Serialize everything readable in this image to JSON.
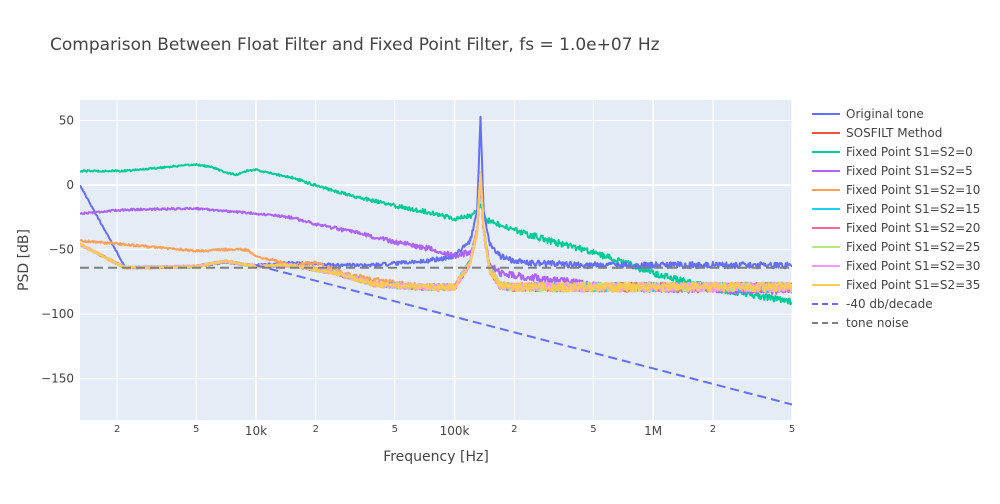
{
  "chart_data": {
    "type": "line",
    "title": "Comparison Between Float Filter and Fixed Point Filter, fs = 1.0e+07 Hz",
    "xlabel": "Frequency [Hz]",
    "ylabel": "PSD [dB]",
    "x_scale": "log",
    "xlim": [
      1300,
      5000000
    ],
    "ylim": [
      -182,
      66
    ],
    "grid": true,
    "legend_position": "right",
    "x_ticks": [
      {
        "value": 2000,
        "label": "2",
        "minor": true
      },
      {
        "value": 5000,
        "label": "5",
        "minor": true
      },
      {
        "value": 10000,
        "label": "10k",
        "minor": false
      },
      {
        "value": 20000,
        "label": "2",
        "minor": true
      },
      {
        "value": 50000,
        "label": "5",
        "minor": true
      },
      {
        "value": 100000,
        "label": "100k",
        "minor": false
      },
      {
        "value": 200000,
        "label": "2",
        "minor": true
      },
      {
        "value": 500000,
        "label": "5",
        "minor": true
      },
      {
        "value": 1000000,
        "label": "1M",
        "minor": false
      },
      {
        "value": 2000000,
        "label": "2",
        "minor": true
      },
      {
        "value": 5000000,
        "label": "5",
        "minor": true
      }
    ],
    "y_ticks": [
      {
        "value": 50,
        "label": "50"
      },
      {
        "value": 0,
        "label": "0"
      },
      {
        "value": -50,
        "label": "−50"
      },
      {
        "value": -100,
        "label": "−100"
      },
      {
        "value": -150,
        "label": "−150"
      }
    ],
    "series": [
      {
        "name": "Original tone",
        "color": "#636efa",
        "dash": "solid",
        "x": [
          1300,
          2200,
          5000,
          7000,
          10000,
          15000,
          25000,
          40000,
          70000,
          100000,
          120000,
          130000,
          135000,
          140000,
          150000,
          170000,
          200000,
          300000,
          500000,
          1000000,
          2000000,
          5000000
        ],
        "y": [
          0,
          -64,
          -63,
          -60,
          -62,
          -60,
          -62,
          -62,
          -59,
          -55,
          -43,
          -20,
          53,
          -20,
          -45,
          -55,
          -59,
          -61,
          -62,
          -62,
          -62,
          -62
        ],
        "noise": 2.5
      },
      {
        "name": "SOSFILT Method",
        "color": "#ef553b",
        "dash": "solid",
        "x": [
          1300,
          2200,
          5000,
          7000,
          10000,
          15000,
          25000,
          40000,
          70000,
          100000,
          120000,
          130000,
          135000,
          140000,
          150000,
          170000,
          200000,
          500000,
          1000000,
          5000000
        ],
        "y": [
          -46,
          -64,
          -63,
          -59,
          -63,
          -62,
          -68,
          -77,
          -79,
          -79,
          -60,
          -35,
          10,
          -35,
          -65,
          -78,
          -79,
          -79,
          -79,
          -79
        ],
        "noise": 3.5
      },
      {
        "name": "Fixed Point S1=S2=0",
        "color": "#00cc96",
        "dash": "solid",
        "x": [
          1300,
          2200,
          3500,
          5000,
          6000,
          7000,
          8000,
          9000,
          10000,
          12000,
          15000,
          20000,
          30000,
          50000,
          80000,
          100000,
          120000,
          130000,
          135000,
          140000,
          150000,
          200000,
          300000,
          500000,
          1000000,
          2000000,
          5000000
        ],
        "y": [
          11,
          11,
          14,
          16,
          14,
          10,
          8,
          11,
          12,
          9,
          6,
          0,
          -8,
          -16,
          -22,
          -26,
          -24,
          -20,
          -15,
          -25,
          -28,
          -35,
          -43,
          -52,
          -68,
          -80,
          -90
        ],
        "noise": 2.5
      },
      {
        "name": "Fixed Point S1=S2=5",
        "color": "#ab63fa",
        "dash": "solid",
        "x": [
          1300,
          2200,
          5000,
          7000,
          10000,
          15000,
          20000,
          30000,
          50000,
          80000,
          100000,
          120000,
          130000,
          135000,
          140000,
          150000,
          170000,
          200000,
          300000,
          500000,
          1000000,
          5000000
        ],
        "y": [
          -22,
          -19,
          -18,
          -20,
          -22,
          -25,
          -30,
          -36,
          -44,
          -50,
          -55,
          -52,
          -35,
          5,
          -35,
          -62,
          -68,
          -70,
          -73,
          -78,
          -80,
          -82
        ],
        "noise": 3
      },
      {
        "name": "Fixed Point S1=S2=10",
        "color": "#ffa15a",
        "dash": "solid",
        "x": [
          1300,
          2200,
          5000,
          7000,
          9000,
          10000,
          12000,
          15000,
          20000,
          30000,
          50000,
          80000,
          100000,
          120000,
          130000,
          135000,
          140000,
          150000,
          170000,
          200000,
          500000,
          1000000,
          5000000
        ],
        "y": [
          -43,
          -46,
          -51,
          -50,
          -50,
          -55,
          -58,
          -62,
          -60,
          -70,
          -76,
          -80,
          -79,
          -60,
          -35,
          10,
          -35,
          -65,
          -77,
          -79,
          -79,
          -79,
          -79
        ],
        "noise": 3.5
      },
      {
        "name": "Fixed Point S1=S2=15",
        "color": "#19d3f3",
        "dash": "solid",
        "x": [
          1300,
          2200,
          5000,
          7000,
          10000,
          15000,
          25000,
          40000,
          70000,
          100000,
          120000,
          130000,
          135000,
          140000,
          150000,
          170000,
          200000,
          500000,
          1000000,
          5000000
        ],
        "y": [
          -46,
          -64,
          -63,
          -59,
          -63,
          -62,
          -68,
          -77,
          -79,
          -79,
          -60,
          -35,
          10,
          -35,
          -65,
          -78,
          -79,
          -79,
          -79,
          -79
        ],
        "noise": 3.5
      },
      {
        "name": "Fixed Point S1=S2=20",
        "color": "#ff6692",
        "dash": "solid",
        "x": [
          1300,
          2200,
          5000,
          7000,
          10000,
          15000,
          25000,
          40000,
          70000,
          100000,
          120000,
          130000,
          135000,
          140000,
          150000,
          170000,
          200000,
          500000,
          1000000,
          5000000
        ],
        "y": [
          -46,
          -64,
          -63,
          -59,
          -63,
          -62,
          -68,
          -77,
          -79,
          -79,
          -60,
          -35,
          10,
          -35,
          -65,
          -78,
          -79,
          -79,
          -79,
          -79
        ],
        "noise": 3.5
      },
      {
        "name": "Fixed Point S1=S2=25",
        "color": "#b6e880",
        "dash": "solid",
        "x": [
          1300,
          2200,
          5000,
          7000,
          10000,
          15000,
          25000,
          40000,
          70000,
          100000,
          120000,
          130000,
          135000,
          140000,
          150000,
          170000,
          200000,
          500000,
          1000000,
          5000000
        ],
        "y": [
          -46,
          -64,
          -63,
          -59,
          -63,
          -62,
          -68,
          -77,
          -79,
          -79,
          -60,
          -35,
          10,
          -35,
          -65,
          -78,
          -79,
          -79,
          -79,
          -79
        ],
        "noise": 3.5
      },
      {
        "name": "Fixed Point S1=S2=30",
        "color": "#ff97ff",
        "dash": "solid",
        "x": [
          1300,
          2200,
          5000,
          7000,
          10000,
          15000,
          25000,
          40000,
          70000,
          100000,
          120000,
          130000,
          135000,
          140000,
          150000,
          170000,
          200000,
          500000,
          1000000,
          5000000
        ],
        "y": [
          -46,
          -64,
          -63,
          -59,
          -63,
          -62,
          -68,
          -77,
          -79,
          -79,
          -60,
          -35,
          10,
          -35,
          -65,
          -78,
          -79,
          -79,
          -79,
          -79
        ],
        "noise": 3.5
      },
      {
        "name": "Fixed Point S1=S2=35",
        "color": "#fecb52",
        "dash": "solid",
        "x": [
          1300,
          2200,
          5000,
          7000,
          10000,
          15000,
          25000,
          40000,
          70000,
          100000,
          120000,
          130000,
          135000,
          140000,
          150000,
          170000,
          200000,
          500000,
          1000000,
          5000000
        ],
        "y": [
          -46,
          -64,
          -63,
          -59,
          -63,
          -62,
          -68,
          -77,
          -79,
          -79,
          -60,
          -35,
          10,
          -35,
          -65,
          -78,
          -79,
          -79,
          -79,
          -79
        ],
        "noise": 3.5
      },
      {
        "name": "-40 db/decade",
        "color": "#636efa",
        "dash": "dash",
        "x": [
          10000,
          5000000
        ],
        "y": [
          -62,
          -170
        ],
        "noise": 0
      },
      {
        "name": "tone noise",
        "color": "#7f7f7f",
        "dash": "dash",
        "x": [
          1300,
          5000000
        ],
        "y": [
          -64,
          -64
        ],
        "noise": 0
      }
    ]
  }
}
